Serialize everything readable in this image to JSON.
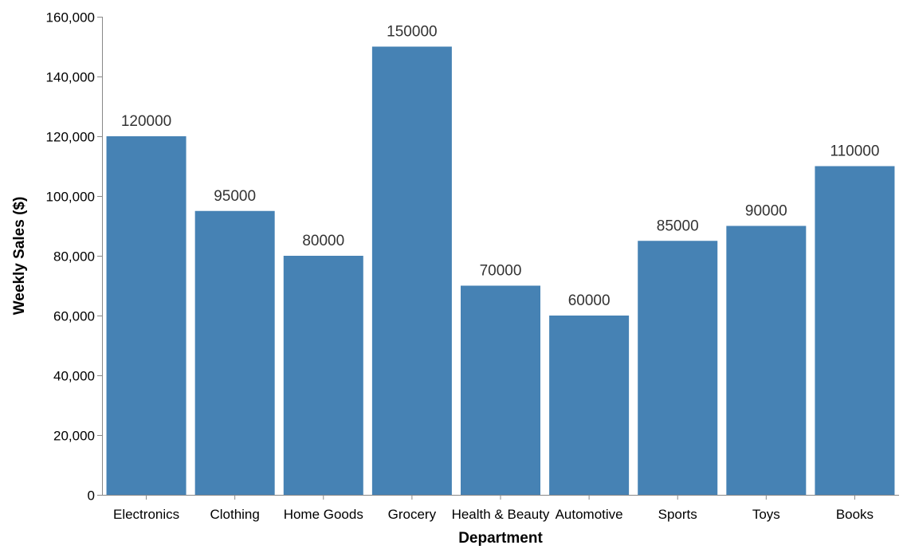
{
  "chart_data": {
    "type": "bar",
    "categories": [
      "Electronics",
      "Clothing",
      "Home Goods",
      "Grocery",
      "Health & Beauty",
      "Automotive",
      "Sports",
      "Toys",
      "Books"
    ],
    "values": [
      120000,
      95000,
      80000,
      150000,
      70000,
      60000,
      85000,
      90000,
      110000
    ],
    "value_labels": [
      "120000",
      "95000",
      "80000",
      "150000",
      "70000",
      "60000",
      "85000",
      "90000",
      "110000"
    ],
    "xlabel": "Department",
    "ylabel": "Weekly Sales ($)",
    "ylim": [
      0,
      160000
    ],
    "yticks": [
      0,
      20000,
      40000,
      60000,
      80000,
      100000,
      120000,
      140000,
      160000
    ],
    "ytick_labels": [
      "0",
      "20,000",
      "40,000",
      "60,000",
      "80,000",
      "100,000",
      "120,000",
      "140,000",
      "160,000"
    ],
    "bar_color": "#4682b4",
    "grid": false,
    "legend": "none"
  }
}
